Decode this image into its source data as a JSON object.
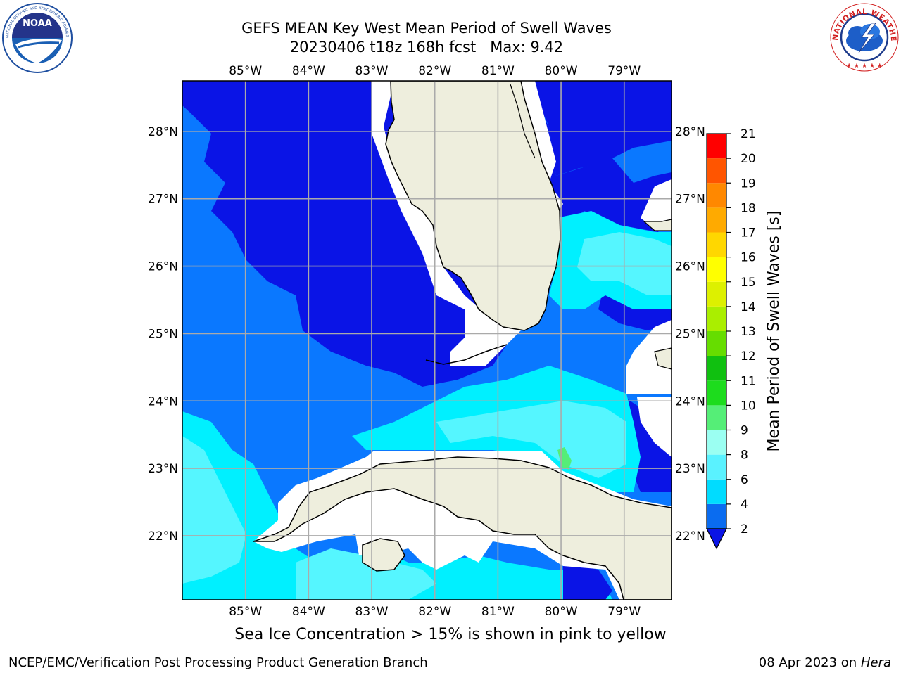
{
  "header": {
    "title_line1": "GEFS MEAN Key West Mean Period of Swell Waves",
    "title_line2": "20230406 t18z 168h fcst   Max: 9.42"
  },
  "map": {
    "lon_labels": [
      "85°W",
      "84°W",
      "83°W",
      "82°W",
      "81°W",
      "80°W",
      "79°W"
    ],
    "lat_labels": [
      "28°N",
      "27°N",
      "26°N",
      "25°N",
      "24°N",
      "23°N",
      "22°N"
    ],
    "lon_range": [
      -86.0,
      -78.25
    ],
    "lat_range": [
      21.05,
      28.75
    ]
  },
  "colorbar": {
    "label": "Mean Period of Swell Waves [s]",
    "ticks": [
      "2",
      "4",
      "6",
      "8",
      "9",
      "10",
      "11",
      "12",
      "13",
      "14",
      "15",
      "16",
      "17",
      "18",
      "19",
      "20",
      "21"
    ],
    "colors": [
      "#0a6cf0",
      "#00dcff",
      "#5af2ff",
      "#9bfff2",
      "#55ee77",
      "#1ddc1d",
      "#10c010",
      "#66dd00",
      "#aaee00",
      "#ddf000",
      "#ffff00",
      "#ffd700",
      "#ffaa00",
      "#ff8800",
      "#ff5500",
      "#ff2200",
      "#ff0000"
    ],
    "under_color": "#0a14e6"
  },
  "colors": {
    "land": "#eeeedd",
    "deep_blue": "#0a14e6",
    "mid_blue": "#0a78ff",
    "cyan": "#00f0ff",
    "light_cyan": "#55f6ff",
    "green": "#55ee77",
    "grid": "#aaaaaa"
  },
  "logos": {
    "left": "noaa-logo",
    "right": "nws-logo",
    "nws_ring_text": "NATIONAL WEATHER SERVICE"
  },
  "footer": {
    "caption": "Sea Ice Concentration > 15% is shown in pink to yellow",
    "left": "NCEP/EMC/Verification Post Processing Product Generation Branch",
    "right_date": "08 Apr 2023 on",
    "right_host": "Hera"
  }
}
